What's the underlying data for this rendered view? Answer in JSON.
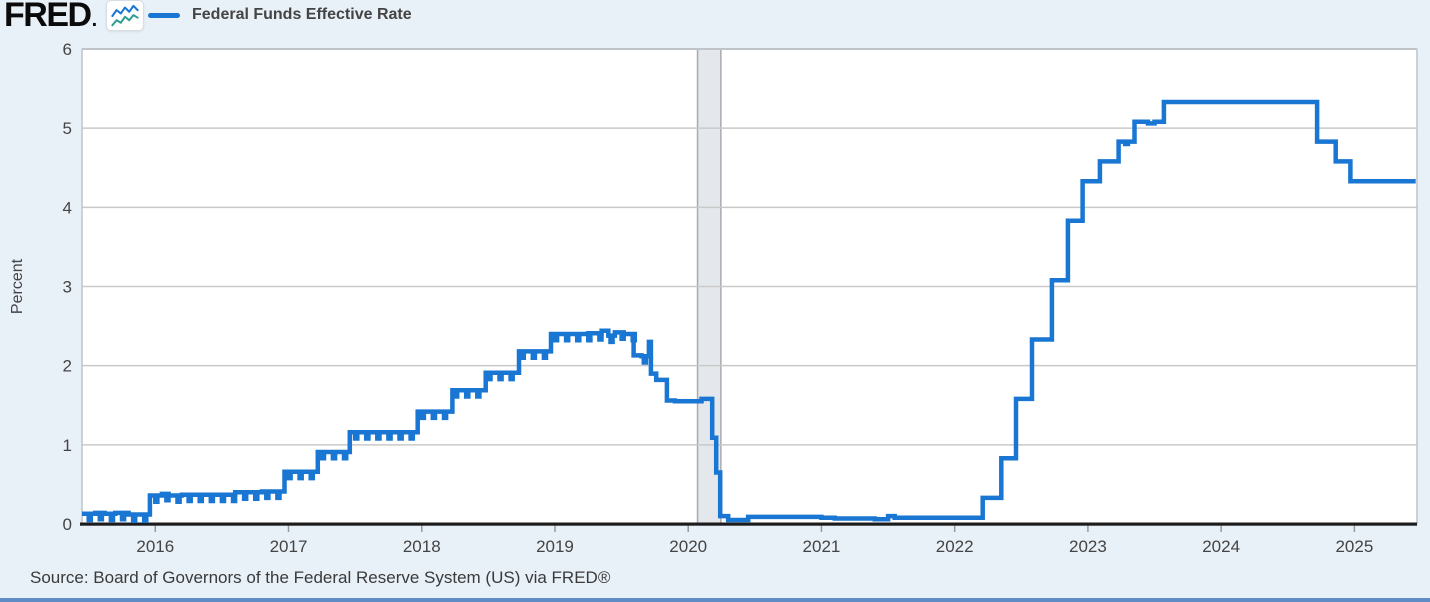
{
  "header": {
    "logo_text": "FRED",
    "logo_dot": ".",
    "legend": {
      "series_label": "Federal Funds Effective Rate",
      "swatch_color": "#1976d2"
    }
  },
  "footer": {
    "source_text": "Source: Board of Governors of the Federal Reserve System (US) via FRED®"
  },
  "colors": {
    "page_bg": "#e8f0f8",
    "plot_bg": "#ffffff",
    "grid": "#c9c9c9",
    "plot_border": "#bfc4c9",
    "axis_line": "#1c1c1c",
    "tick": "#999999",
    "text": "#444444",
    "line": "#1976d2",
    "recession_fill": "#e4e8ec",
    "recession_edge": "#a5abb1",
    "icon_line_top": "#1976d2",
    "icon_line_bottom": "#2e9e8f"
  },
  "chart_data": {
    "type": "line",
    "title": "Federal Funds Effective Rate",
    "xlabel": "",
    "ylabel": "Percent",
    "ylim": [
      0,
      6
    ],
    "yticks": [
      0,
      1,
      2,
      3,
      4,
      5,
      6
    ],
    "xticks": [
      2016,
      2017,
      2018,
      2019,
      2020,
      2021,
      2022,
      2023,
      2024,
      2025
    ],
    "x_range": [
      2015.45,
      2025.47
    ],
    "grid": true,
    "step": true,
    "legend_position": "top-left",
    "recession_bands": [
      [
        2020.07,
        2020.245
      ]
    ],
    "monthend_dips": {
      "range": [
        2015.5,
        2019.7
      ],
      "depth": 0.08,
      "width": 0.016
    },
    "series": [
      {
        "name": "Federal Funds Effective Rate",
        "color": "#1976d2",
        "units": "Percent",
        "points": [
          [
            2015.45,
            0.13
          ],
          [
            2015.55,
            0.14
          ],
          [
            2015.62,
            0.13
          ],
          [
            2015.7,
            0.14
          ],
          [
            2015.8,
            0.12
          ],
          [
            2015.9,
            0.12
          ],
          [
            2015.96,
            0.36
          ],
          [
            2016.05,
            0.38
          ],
          [
            2016.1,
            0.36
          ],
          [
            2016.2,
            0.37
          ],
          [
            2016.4,
            0.37
          ],
          [
            2016.6,
            0.4
          ],
          [
            2016.8,
            0.41
          ],
          [
            2016.97,
            0.66
          ],
          [
            2017.22,
            0.91
          ],
          [
            2017.46,
            1.16
          ],
          [
            2017.97,
            1.42
          ],
          [
            2018.23,
            1.69
          ],
          [
            2018.48,
            1.91
          ],
          [
            2018.73,
            2.18
          ],
          [
            2018.97,
            2.4
          ],
          [
            2019.1,
            2.4
          ],
          [
            2019.25,
            2.41
          ],
          [
            2019.35,
            2.44
          ],
          [
            2019.4,
            2.38
          ],
          [
            2019.45,
            2.42
          ],
          [
            2019.5,
            2.4
          ],
          [
            2019.59,
            2.13
          ],
          [
            2019.65,
            2.12
          ],
          [
            2019.705,
            2.3
          ],
          [
            2019.72,
            1.9
          ],
          [
            2019.76,
            1.82
          ],
          [
            2019.84,
            1.56
          ],
          [
            2019.9,
            1.55
          ],
          [
            2020.0,
            1.55
          ],
          [
            2020.1,
            1.58
          ],
          [
            2020.18,
            1.09
          ],
          [
            2020.21,
            0.65
          ],
          [
            2020.24,
            0.1
          ],
          [
            2020.3,
            0.05
          ],
          [
            2020.45,
            0.09
          ],
          [
            2020.6,
            0.09
          ],
          [
            2020.75,
            0.09
          ],
          [
            2020.9,
            0.09
          ],
          [
            2021.0,
            0.08
          ],
          [
            2021.1,
            0.07
          ],
          [
            2021.25,
            0.07
          ],
          [
            2021.4,
            0.06
          ],
          [
            2021.5,
            0.1
          ],
          [
            2021.55,
            0.08
          ],
          [
            2021.7,
            0.08
          ],
          [
            2021.85,
            0.08
          ],
          [
            2022.0,
            0.08
          ],
          [
            2022.1,
            0.08
          ],
          [
            2022.21,
            0.33
          ],
          [
            2022.35,
            0.83
          ],
          [
            2022.46,
            1.58
          ],
          [
            2022.58,
            2.33
          ],
          [
            2022.73,
            3.08
          ],
          [
            2022.85,
            3.83
          ],
          [
            2022.96,
            4.33
          ],
          [
            2023.09,
            4.58
          ],
          [
            2023.23,
            4.83
          ],
          [
            2023.28,
            4.8
          ],
          [
            2023.3,
            4.83
          ],
          [
            2023.35,
            5.08
          ],
          [
            2023.45,
            5.06
          ],
          [
            2023.5,
            5.08
          ],
          [
            2023.57,
            5.33
          ],
          [
            2024.0,
            5.33
          ],
          [
            2024.5,
            5.33
          ],
          [
            2024.72,
            4.83
          ],
          [
            2024.86,
            4.58
          ],
          [
            2024.97,
            4.33
          ],
          [
            2025.46,
            4.33
          ]
        ]
      }
    ]
  }
}
